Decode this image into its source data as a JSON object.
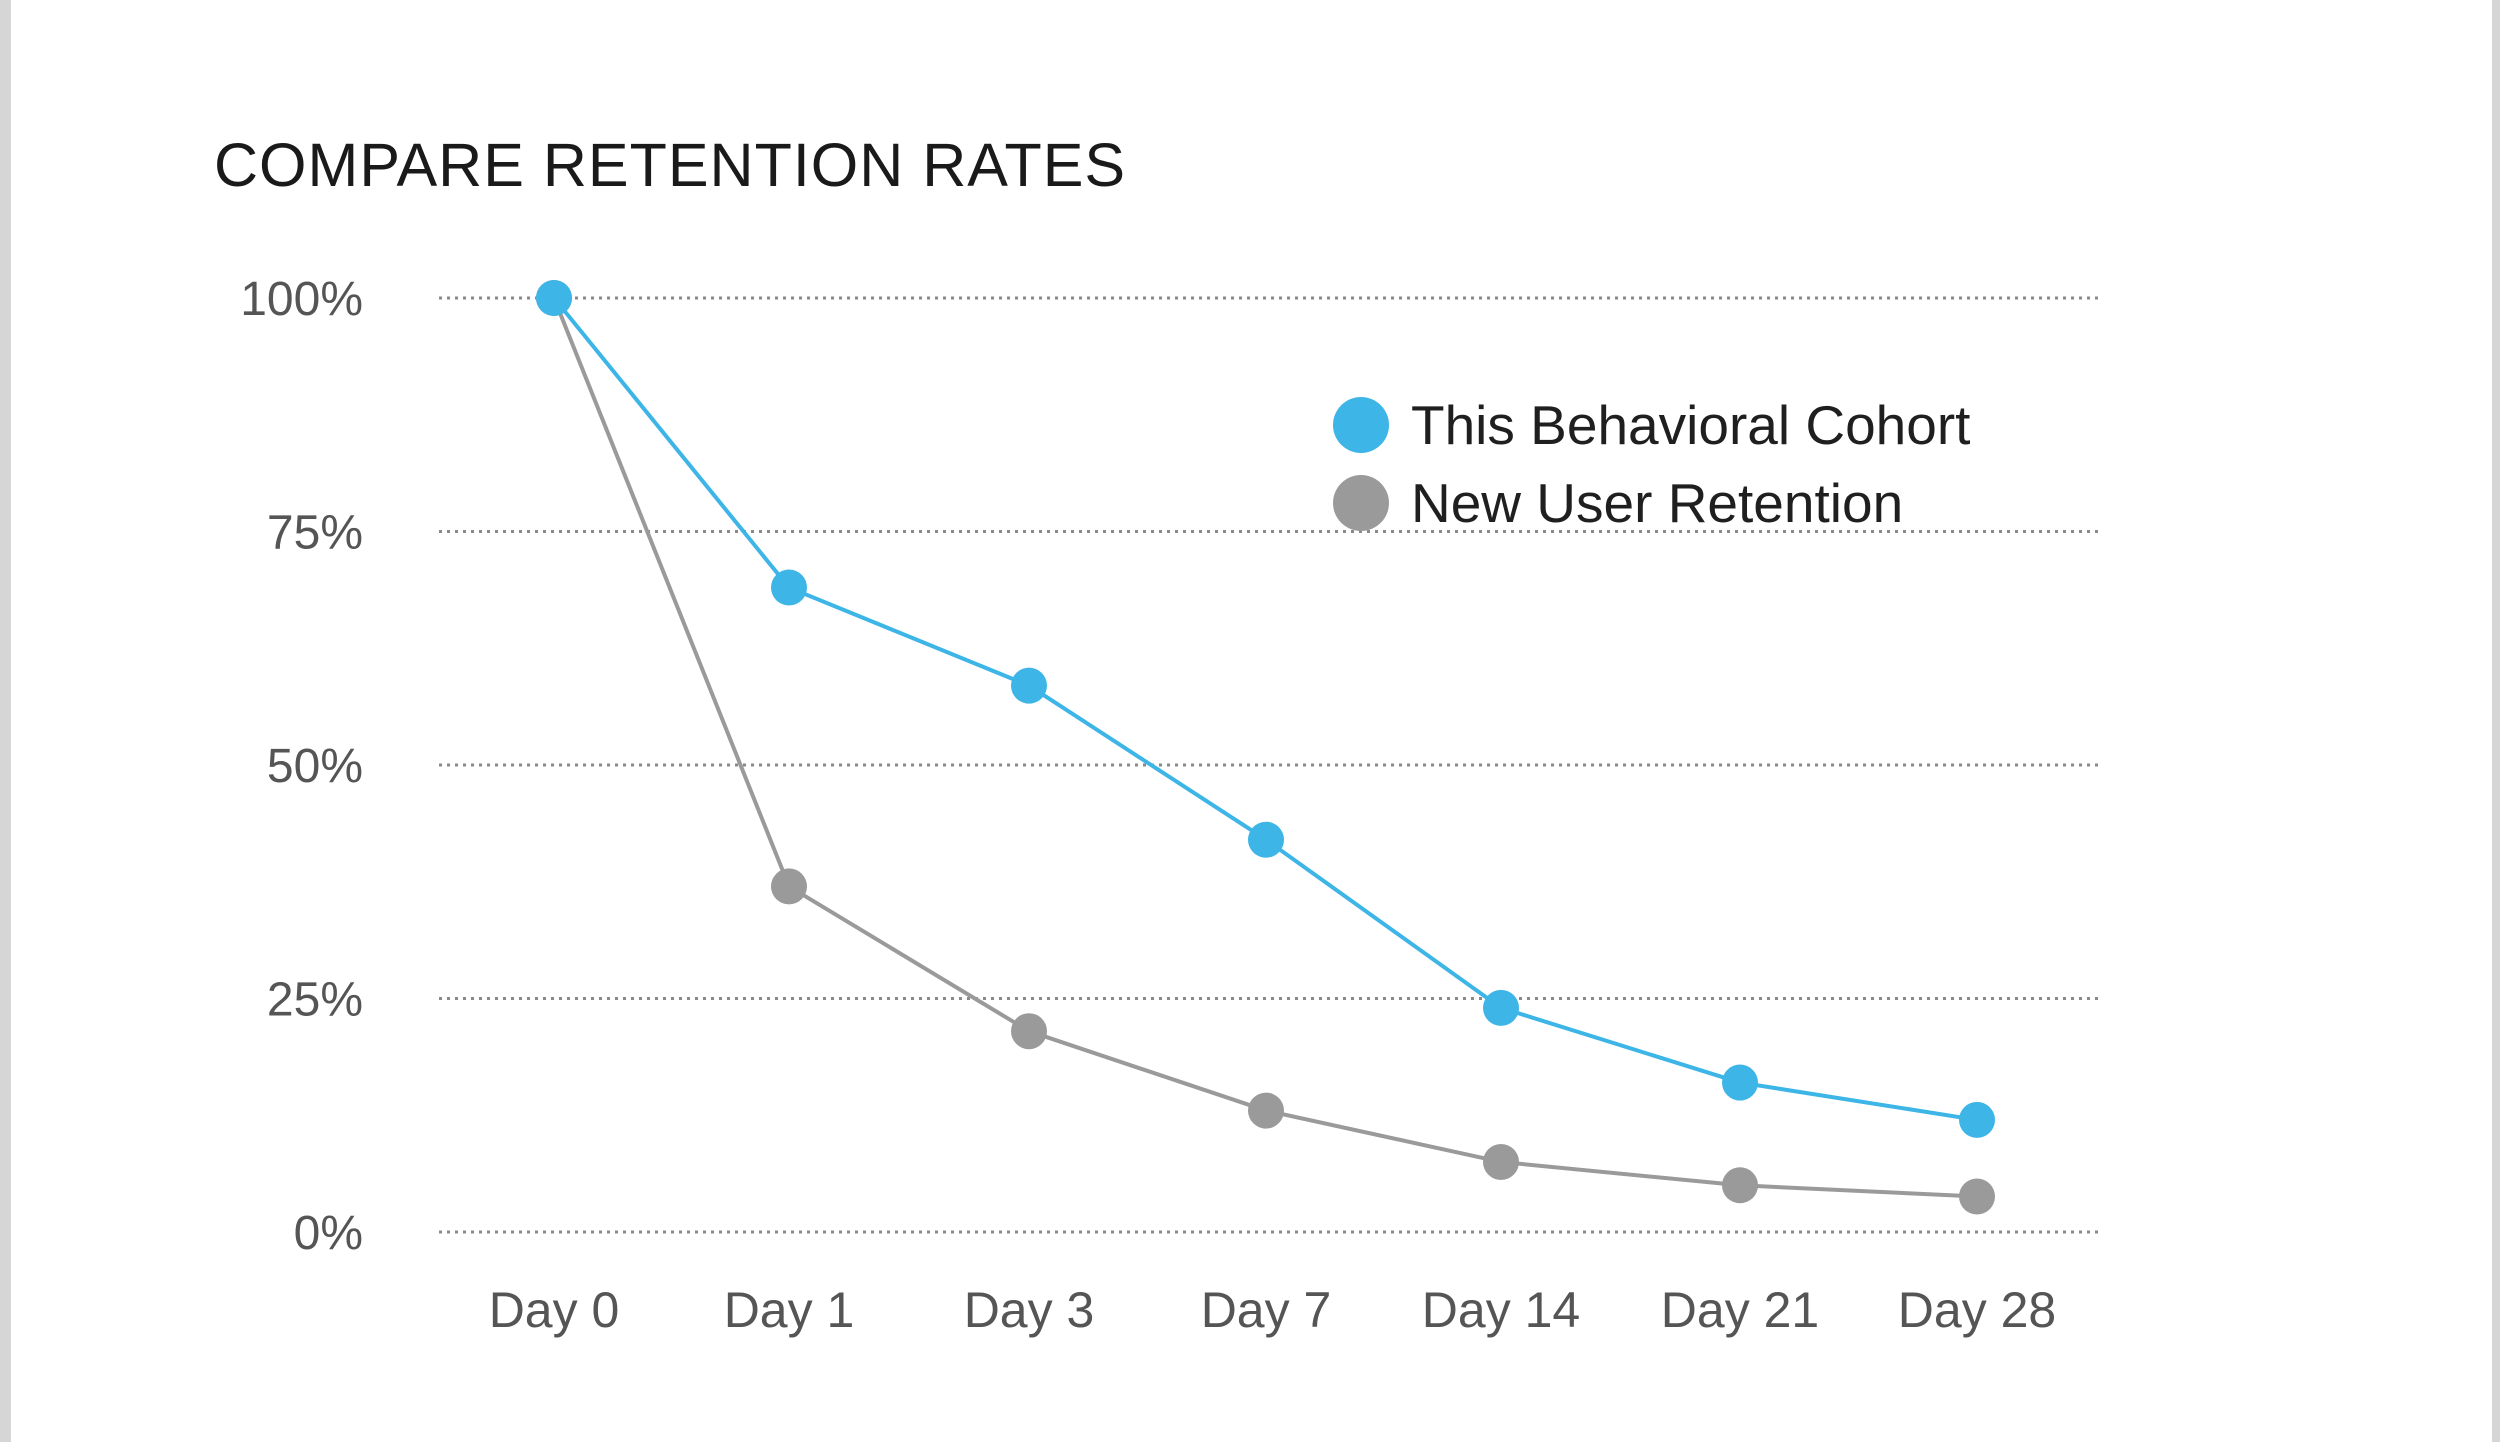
{
  "chart_data": {
    "type": "line",
    "title": "COMPARE RETENTION RATES",
    "xlabel": "",
    "ylabel": "",
    "categories": [
      "Day 0",
      "Day 1",
      "Day 3",
      "Day 7",
      "Day 14",
      "Day 21",
      "Day 28"
    ],
    "ylim": [
      0,
      100
    ],
    "yticks": [
      0,
      25,
      50,
      75,
      100
    ],
    "ytick_labels": [
      "0%",
      "25%",
      "50%",
      "75%",
      "100%"
    ],
    "grid": true,
    "legend_position": "top-right",
    "series": [
      {
        "name": "This Behavioral Cohort",
        "color": "#3db5e6",
        "values": [
          100,
          69,
          58.5,
          42,
          24,
          16,
          12
        ]
      },
      {
        "name": "New User Retention",
        "color": "#9a9a9a",
        "values": [
          100,
          37,
          21.5,
          13,
          7.5,
          5,
          3.8
        ]
      }
    ]
  }
}
